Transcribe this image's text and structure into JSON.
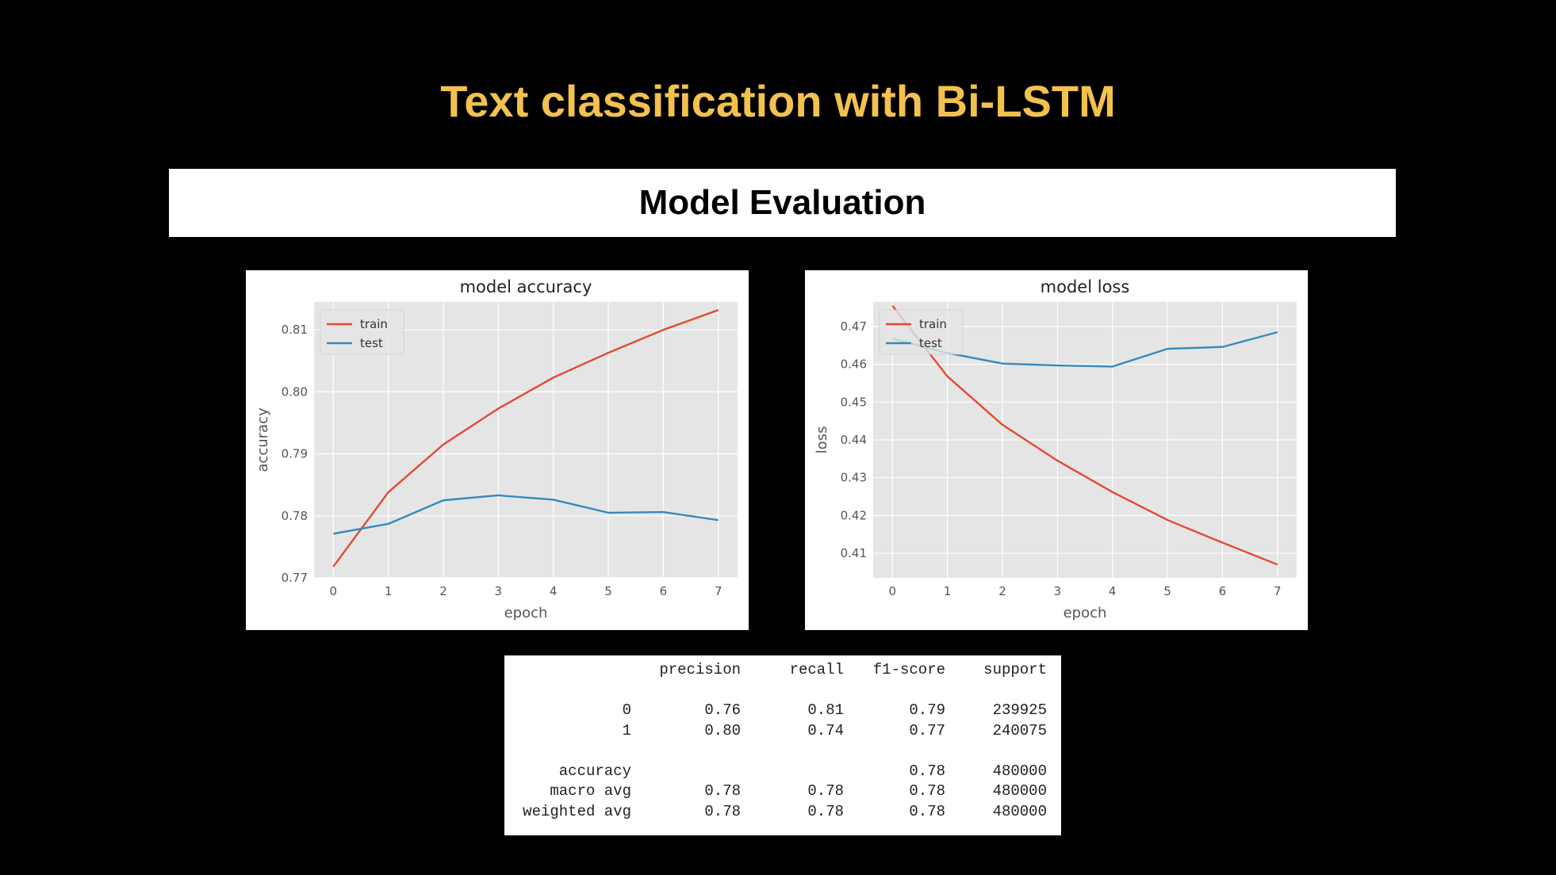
{
  "slide": {
    "title": "Text classification with Bi-LSTM",
    "section": "Model Evaluation"
  },
  "colors": {
    "title": "#F2C14E",
    "train": "#E24A33",
    "test": "#348ABD",
    "plot_bg": "#E5E5E5"
  },
  "chart_data": [
    {
      "type": "line",
      "title": "model accuracy",
      "xlabel": "epoch",
      "ylabel": "accuracy",
      "x": [
        0,
        1,
        2,
        3,
        4,
        5,
        6,
        7
      ],
      "xlim": [
        -0.35,
        7.35
      ],
      "ylim": [
        0.77,
        0.8145
      ],
      "xticks": [
        "0",
        "1",
        "2",
        "3",
        "4",
        "5",
        "6",
        "7"
      ],
      "yticks": [
        "0.77",
        "0.78",
        "0.79",
        "0.80",
        "0.81"
      ],
      "ytick_values": [
        0.77,
        0.78,
        0.79,
        0.8,
        0.81
      ],
      "legend": "top-left",
      "grid": true,
      "series": [
        {
          "name": "train",
          "values": [
            0.7718,
            0.7838,
            0.7915,
            0.7973,
            0.8023,
            0.8063,
            0.81,
            0.8132
          ]
        },
        {
          "name": "test",
          "values": [
            0.7771,
            0.7787,
            0.7825,
            0.7833,
            0.7826,
            0.7805,
            0.7806,
            0.7793
          ]
        }
      ]
    },
    {
      "type": "line",
      "title": "model loss",
      "xlabel": "epoch",
      "ylabel": "loss",
      "x": [
        0,
        1,
        2,
        3,
        4,
        5,
        6,
        7
      ],
      "xlim": [
        -0.35,
        7.35
      ],
      "ylim": [
        0.4035,
        0.4765
      ],
      "xticks": [
        "0",
        "1",
        "2",
        "3",
        "4",
        "5",
        "6",
        "7"
      ],
      "yticks": [
        "0.41",
        "0.42",
        "0.43",
        "0.44",
        "0.45",
        "0.46",
        "0.47"
      ],
      "ytick_values": [
        0.41,
        0.42,
        0.43,
        0.44,
        0.45,
        0.46,
        0.47
      ],
      "legend": "top-left",
      "grid": true,
      "series": [
        {
          "name": "train",
          "values": [
            0.4755,
            0.4568,
            0.444,
            0.4345,
            0.4262,
            0.4188,
            0.4128,
            0.407
          ]
        },
        {
          "name": "test",
          "values": [
            0.4668,
            0.463,
            0.4602,
            0.4597,
            0.4594,
            0.4641,
            0.4646,
            0.4685
          ]
        }
      ]
    }
  ],
  "report": {
    "header": [
      "precision",
      "recall",
      "f1-score",
      "support"
    ],
    "rows": [
      {
        "label": "0",
        "precision": "0.76",
        "recall": "0.81",
        "f1": "0.79",
        "support": "239925"
      },
      {
        "label": "1",
        "precision": "0.80",
        "recall": "0.74",
        "f1": "0.77",
        "support": "240075"
      }
    ],
    "summary": [
      {
        "label": "accuracy",
        "precision": "",
        "recall": "",
        "f1": "0.78",
        "support": "480000"
      },
      {
        "label": "macro avg",
        "precision": "0.78",
        "recall": "0.78",
        "f1": "0.78",
        "support": "480000"
      },
      {
        "label": "weighted avg",
        "precision": "0.78",
        "recall": "0.78",
        "f1": "0.78",
        "support": "480000"
      }
    ]
  }
}
